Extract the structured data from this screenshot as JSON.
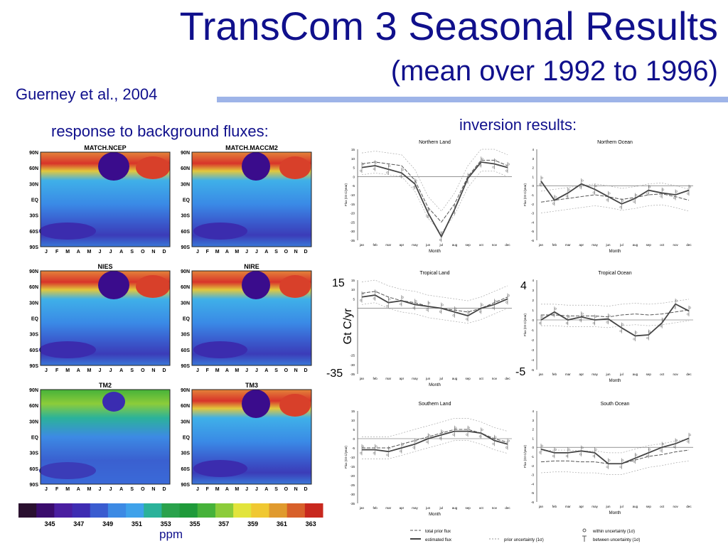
{
  "slide": {
    "title": "TransCom 3 Seasonal Results",
    "subtitle": "(mean over 1992 to 1996)",
    "author": "Guerney et al., 2004",
    "left_heading": "response to background fluxes:",
    "right_heading": "inversion results:",
    "unit": "ppm",
    "overlay_top_left": "15",
    "overlay_bottom_left": "-35",
    "overlay_ylabel": "Gt C/yr",
    "overlay_top_right": "4",
    "overlay_bottom_right": "-5"
  },
  "heatmaps": {
    "titles": [
      "MATCH.NCEP",
      "MATCH.MACCM2",
      "NIES",
      "NIRE",
      "TM2",
      "TM3"
    ],
    "lat_labels": [
      "90N",
      "60N",
      "30N",
      "EQ",
      "30S",
      "60S",
      "90S"
    ],
    "month_labels": [
      "J",
      "F",
      "M",
      "A",
      "M",
      "J",
      "J",
      "A",
      "S",
      "O",
      "N",
      "D"
    ]
  },
  "colorbar": {
    "colors": [
      "#2a1030",
      "#3a0c6c",
      "#4a1ea0",
      "#3e2cb2",
      "#3a5cd0",
      "#3d8ae4",
      "#3fa2ea",
      "#2bb29a",
      "#2aa24c",
      "#1f9a3a",
      "#46b23a",
      "#8ccc3a",
      "#e2e43c",
      "#f0c832",
      "#e09a2e",
      "#d8602a",
      "#c8281e"
    ],
    "labels": [
      "345",
      "347",
      "349",
      "351",
      "353",
      "355",
      "357",
      "359",
      "361",
      "363"
    ]
  },
  "panels": {
    "common": {
      "xlabel": "Month",
      "ylabel": "Flux (Gt C/year)",
      "months": [
        "jan",
        "feb",
        "mar",
        "apr",
        "may",
        "jun",
        "jul",
        "aug",
        "sep",
        "oct",
        "nov",
        "dec"
      ]
    },
    "items": [
      {
        "title": "Northern Land",
        "yticks": [
          "15",
          "10",
          "5",
          "0",
          "-5",
          "-10",
          "-15",
          "-20",
          "-25",
          "-30",
          "-35"
        ],
        "ylim": [
          -35,
          15
        ],
        "prior": [
          7,
          8,
          7,
          6,
          -2,
          -17,
          -25,
          -15,
          0,
          9,
          9,
          6
        ],
        "estimated": [
          5,
          6,
          4,
          2,
          -4,
          -20,
          -33,
          -18,
          -1,
          8,
          7,
          5
        ]
      },
      {
        "title": "Northern Ocean",
        "yticks": [
          "4",
          "3",
          "2",
          "1",
          "0",
          "-1",
          "-2",
          "-3",
          "-4",
          "-5",
          "-6"
        ],
        "ylim": [
          -6,
          4
        ],
        "prior": [
          -1.8,
          -1.6,
          -1.4,
          -1.2,
          -1.0,
          -1.2,
          -1.5,
          -1.3,
          -1.0,
          -0.9,
          -1.2,
          -1.6
        ],
        "estimated": [
          0.5,
          -1.6,
          -0.8,
          0.2,
          -0.4,
          -1.2,
          -2.0,
          -1.4,
          -0.5,
          -0.8,
          -1.0,
          -0.5
        ]
      },
      {
        "title": "Tropical Land",
        "yticks": [
          "15",
          "10",
          "5",
          "0",
          "-5",
          "-10",
          "-15",
          "-20",
          "-25",
          "-30",
          "-35"
        ],
        "ylim": [
          -35,
          15
        ],
        "prior": [
          8,
          9,
          6,
          4,
          3,
          1,
          0,
          -1,
          -2,
          0,
          3,
          6
        ],
        "estimated": [
          6,
          7,
          3,
          4,
          2,
          1,
          0,
          -2,
          -4,
          0,
          2,
          5
        ]
      },
      {
        "title": "Tropical Ocean",
        "yticks": [
          "4",
          "3",
          "2",
          "1",
          "0",
          "-1",
          "-2",
          "-3",
          "-4",
          "-5"
        ],
        "ylim": [
          -5,
          4
        ],
        "prior": [
          0.5,
          0.5,
          0.4,
          0.4,
          0.4,
          0.3,
          0.5,
          0.6,
          0.5,
          0.6,
          0.8,
          1.0
        ],
        "estimated": [
          0.0,
          0.8,
          0.0,
          0.3,
          0.0,
          0.1,
          -0.8,
          -1.6,
          -1.5,
          -0.3,
          1.6,
          0.9
        ]
      },
      {
        "title": "Southern Land",
        "yticks": [
          "15",
          "10",
          "5",
          "0",
          "-5",
          "-10",
          "-15",
          "-20",
          "-25",
          "-30",
          "-35"
        ],
        "ylim": [
          -35,
          15
        ],
        "prior": [
          -5,
          -5,
          -5,
          -3,
          -1,
          1,
          3,
          5,
          5,
          3,
          0,
          -2
        ],
        "estimated": [
          -6,
          -6,
          -7,
          -5,
          -3,
          0,
          2,
          4,
          4,
          3,
          -1,
          -3
        ]
      },
      {
        "title": "South Ocean",
        "yticks": [
          "4",
          "3",
          "2",
          "1",
          "0",
          "-1",
          "-2",
          "-3",
          "-4",
          "-5",
          "-6"
        ],
        "ylim": [
          -6,
          4
        ],
        "prior": [
          -1.6,
          -1.5,
          -1.5,
          -1.6,
          -1.6,
          -1.8,
          -1.8,
          -1.4,
          -1.0,
          -0.8,
          -0.5,
          -0.3
        ],
        "estimated": [
          -0.2,
          -0.6,
          -0.6,
          -0.4,
          -0.6,
          -1.8,
          -1.8,
          -1.2,
          -0.6,
          0.0,
          0.4,
          1.0
        ]
      }
    ],
    "legend": {
      "total_prior": "total prior flux",
      "estimated": "estimated flux",
      "prior_unc": "prior uncertainty (1σ)",
      "within_unc": "within uncertainty (1σ)",
      "between_unc": "between uncertainty (1σ)"
    }
  }
}
